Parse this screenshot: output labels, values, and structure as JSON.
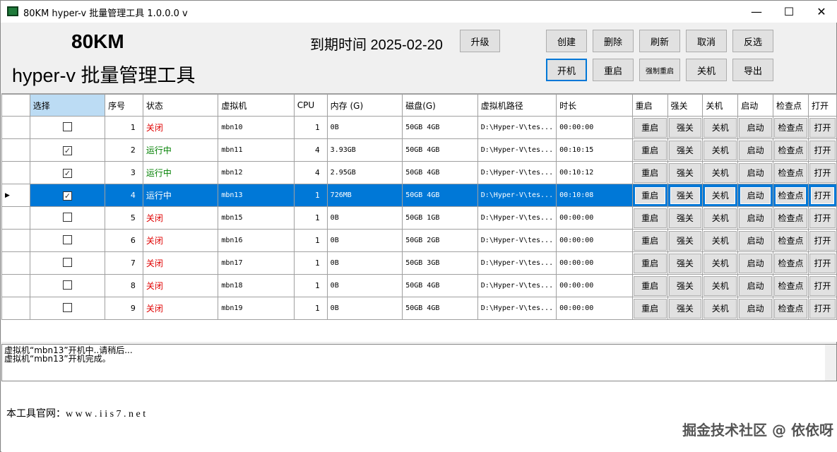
{
  "window": {
    "title": "80KM hyper-v 批量管理工具 1.0.0.0 v",
    "minimize": "—",
    "maximize": "☐",
    "close": "✕"
  },
  "header": {
    "brand": "80KM",
    "subtitle": "hyper-v 批量管理工具",
    "expire": "到期时间 2025-02-20",
    "upgrade": "升级"
  },
  "toolbar": {
    "row1": [
      "创建",
      "删除",
      "刷新",
      "取消",
      "反选"
    ],
    "row2": [
      "开机",
      "重启",
      "强制重启",
      "关机",
      "导出"
    ]
  },
  "table": {
    "columns": [
      "选择",
      "序号",
      "状态",
      "虚拟机",
      "CPU",
      "内存 (G)",
      "磁盘(G)",
      "虚拟机路径",
      "时长",
      "重启",
      "强关",
      "关机",
      "启动",
      "检查点",
      "打开"
    ],
    "actions": [
      "重启",
      "强关",
      "关机",
      "启动",
      "检查点",
      "打开"
    ],
    "status_colors": {
      "关闭": "#e00000",
      "运行中": "#008000"
    },
    "selected_row": 3,
    "rows": [
      {
        "checked": false,
        "seq": "1",
        "status": "关闭",
        "vm": "mbn10",
        "cpu": "1",
        "mem": "0B",
        "disk": "50GB 4GB",
        "path": "D:\\Hyper-V\\tes...",
        "dur": "00:00:00"
      },
      {
        "checked": true,
        "seq": "2",
        "status": "运行中",
        "vm": "mbn11",
        "cpu": "4",
        "mem": "3.93GB",
        "disk": "50GB 4GB",
        "path": "D:\\Hyper-V\\tes...",
        "dur": "00:10:15"
      },
      {
        "checked": true,
        "seq": "3",
        "status": "运行中",
        "vm": "mbn12",
        "cpu": "4",
        "mem": "2.95GB",
        "disk": "50GB 4GB",
        "path": "D:\\Hyper-V\\tes...",
        "dur": "00:10:12"
      },
      {
        "checked": true,
        "seq": "4",
        "status": "运行中",
        "vm": "mbn13",
        "cpu": "1",
        "mem": "726MB",
        "disk": "50GB 4GB",
        "path": "D:\\Hyper-V\\tes...",
        "dur": "00:10:08"
      },
      {
        "checked": false,
        "seq": "5",
        "status": "关闭",
        "vm": "mbn15",
        "cpu": "1",
        "mem": "0B",
        "disk": "50GB 1GB",
        "path": "D:\\Hyper-V\\tes...",
        "dur": "00:00:00"
      },
      {
        "checked": false,
        "seq": "6",
        "status": "关闭",
        "vm": "mbn16",
        "cpu": "1",
        "mem": "0B",
        "disk": "50GB 2GB",
        "path": "D:\\Hyper-V\\tes...",
        "dur": "00:00:00"
      },
      {
        "checked": false,
        "seq": "7",
        "status": "关闭",
        "vm": "mbn17",
        "cpu": "1",
        "mem": "0B",
        "disk": "50GB 3GB",
        "path": "D:\\Hyper-V\\tes...",
        "dur": "00:00:00"
      },
      {
        "checked": false,
        "seq": "8",
        "status": "关闭",
        "vm": "mbn18",
        "cpu": "1",
        "mem": "0B",
        "disk": "50GB 4GB",
        "path": "D:\\Hyper-V\\tes...",
        "dur": "00:00:00"
      },
      {
        "checked": false,
        "seq": "9",
        "status": "关闭",
        "vm": "mbn19",
        "cpu": "1",
        "mem": "0B",
        "disk": "50GB 4GB",
        "path": "D:\\Hyper-V\\tes...",
        "dur": "00:00:00"
      }
    ]
  },
  "log": [
    "虚拟机“mbn13”开机中..请稍后...",
    "虚拟机“mbn13”开机完成。"
  ],
  "footer": {
    "site": "本工具官网：w w w . i i s 7 . n e t",
    "watermark": "掘金技术社区 @ 依依呀"
  }
}
